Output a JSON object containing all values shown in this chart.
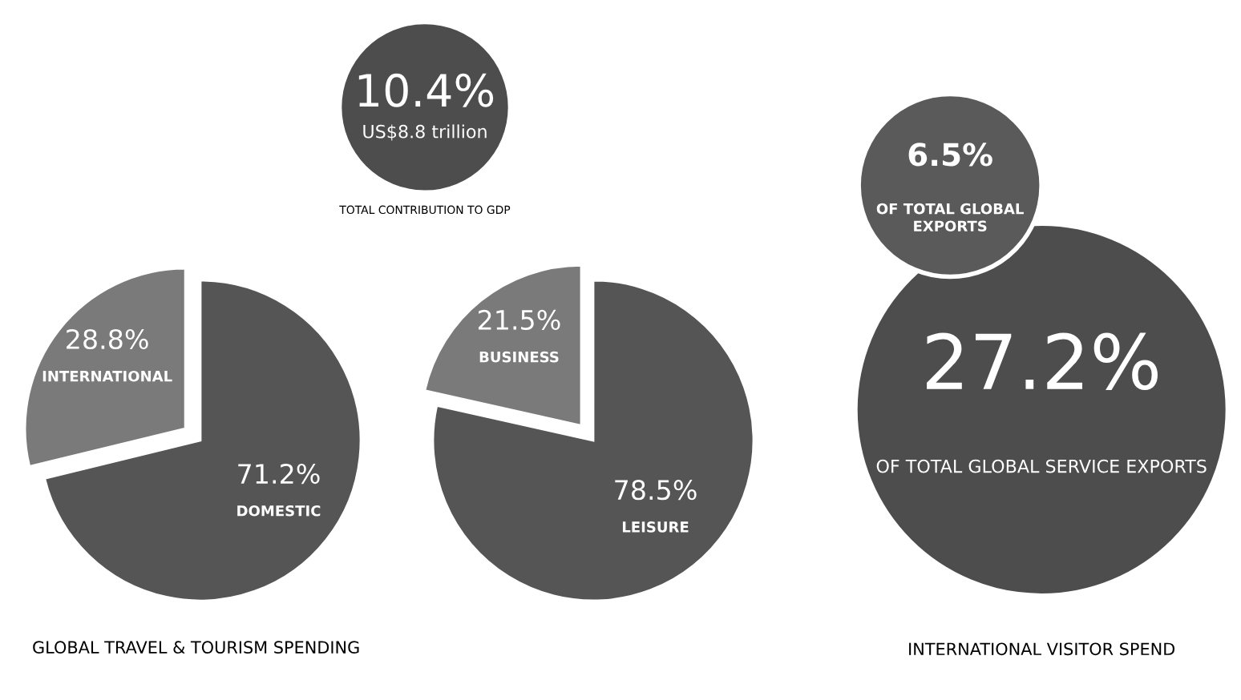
{
  "chart_data": [
    {
      "type": "other",
      "color": "#4d4d4d",
      "annotations": [
        "10.4%",
        "US$8.8 trillion",
        "TOTAL CONTRIBUTION TO GDP"
      ]
    },
    {
      "type": "pie",
      "categories": [
        "INTERNATIONAL",
        "DOMESTIC"
      ],
      "values": [
        28.8,
        71.2
      ],
      "colors": [
        "#7a7a7a",
        "#555555"
      ],
      "value_labels": [
        "28.8%",
        "71.2%"
      ],
      "annotations": [
        "GLOBAL TRAVEL & TOURISM SPENDING"
      ]
    },
    {
      "type": "pie",
      "categories": [
        "BUSINESS",
        "LEISURE"
      ],
      "values": [
        21.5,
        78.5
      ],
      "colors": [
        "#7a7a7a",
        "#555555"
      ],
      "value_labels": [
        "21.5%",
        "78.5%"
      ]
    },
    {
      "type": "other",
      "color": "#4d4d4d",
      "annotations": [
        "6.5%",
        "OF TOTAL GLOBAL EXPORTS",
        "27.2%",
        "OF TOTAL GLOBAL SERVICE EXPORTS",
        "INTERNATIONAL VISITOR SPEND"
      ]
    }
  ]
}
